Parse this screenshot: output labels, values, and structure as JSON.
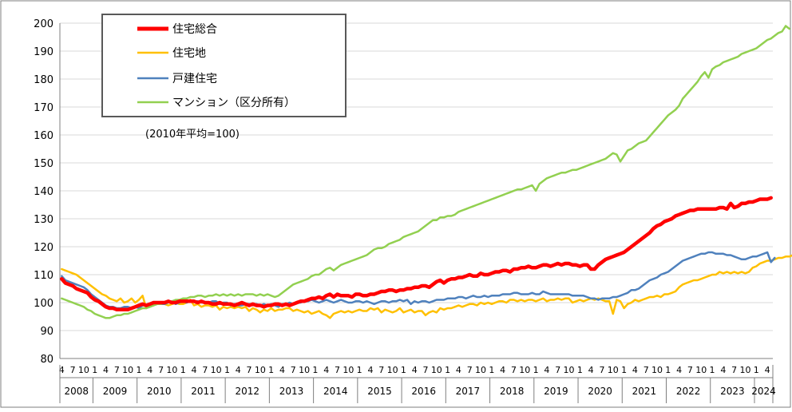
{
  "chart_data": {
    "type": "line",
    "note": "(2010年平均=100)",
    "ylim": [
      80,
      200
    ],
    "yticks": [
      80,
      90,
      100,
      110,
      120,
      130,
      140,
      150,
      160,
      170,
      180,
      190,
      200
    ],
    "x_start": "2008-04",
    "x_end": "2024-03",
    "month_ticks": [
      "4",
      "7",
      "10",
      "1"
    ],
    "years": [
      "2008",
      "2009",
      "2010",
      "2011",
      "2012",
      "2013",
      "2014",
      "2015",
      "2016",
      "2017",
      "2018",
      "2019",
      "2020",
      "2021",
      "2022",
      "2023",
      "2024"
    ],
    "legend": {
      "position": "top-left"
    },
    "series": [
      {
        "name": "住宅総合",
        "color": "#ff0000",
        "values": [
          108.5,
          107.0,
          106.5,
          106.0,
          105.0,
          104.5,
          104.0,
          103.5,
          102.0,
          101.0,
          100.5,
          99.5,
          98.5,
          98.0,
          98.0,
          97.5,
          97.5,
          97.5,
          97.5,
          98.0,
          98.5,
          99.0,
          99.5,
          99.0,
          99.5,
          100.0,
          100.0,
          100.0,
          100.0,
          100.5,
          100.0,
          100.0,
          100.5,
          100.5,
          100.5,
          100.5,
          100.5,
          100.0,
          100.5,
          100.0,
          100.0,
          99.5,
          99.5,
          100.0,
          99.5,
          99.5,
          99.5,
          99.0,
          99.5,
          100.0,
          99.5,
          99.0,
          99.5,
          99.0,
          99.0,
          98.5,
          99.0,
          99.0,
          99.5,
          99.5,
          99.0,
          99.5,
          99.0,
          99.5,
          100.0,
          100.5,
          100.5,
          101.0,
          101.5,
          101.5,
          102.0,
          101.5,
          102.5,
          103.0,
          102.0,
          103.0,
          102.5,
          102.5,
          102.5,
          102.0,
          103.0,
          103.0,
          102.5,
          102.5,
          103.0,
          103.0,
          103.5,
          104.0,
          104.0,
          104.5,
          104.5,
          104.0,
          104.5,
          104.5,
          105.0,
          105.0,
          105.5,
          105.5,
          106.0,
          106.0,
          105.5,
          106.5,
          107.5,
          108.0,
          107.0,
          108.0,
          108.5,
          108.5,
          109.0,
          109.0,
          109.5,
          110.0,
          109.5,
          109.5,
          110.5,
          110.0,
          110.0,
          110.5,
          111.0,
          111.0,
          111.5,
          111.5,
          111.0,
          112.0,
          112.0,
          112.5,
          112.5,
          113.0,
          112.5,
          112.5,
          113.0,
          113.5,
          113.5,
          113.0,
          113.5,
          114.0,
          113.5,
          114.0,
          114.0,
          113.5,
          113.5,
          113.0,
          113.5,
          113.5,
          112.0,
          112.0,
          113.5,
          114.5,
          115.5,
          116.0,
          116.5,
          117.0,
          117.5,
          118.0,
          119.0,
          120.0,
          121.0,
          122.0,
          123.0,
          124.0,
          125.0,
          126.5,
          127.5,
          128.0,
          129.0,
          129.5,
          130.0,
          131.0,
          131.5,
          132.0,
          132.5,
          133.0,
          133.0,
          133.5,
          133.5,
          133.5,
          133.5,
          133.5,
          133.5,
          134.0,
          134.0,
          133.5,
          135.5,
          134.0,
          134.5,
          135.5,
          135.5,
          136.0,
          136.0,
          136.5,
          137.0,
          137.0,
          137.0,
          137.5
        ]
      },
      {
        "name": "住宅地",
        "color": "#ffc000",
        "values": [
          112.0,
          111.5,
          111.0,
          110.5,
          110.0,
          109.0,
          108.0,
          107.0,
          106.0,
          105.0,
          104.0,
          103.0,
          102.5,
          101.5,
          101.0,
          100.5,
          101.5,
          100.0,
          100.5,
          101.5,
          100.0,
          101.0,
          102.5,
          98.0,
          99.0,
          99.0,
          100.0,
          99.5,
          99.5,
          99.0,
          99.5,
          100.0,
          99.5,
          99.5,
          100.0,
          101.0,
          99.0,
          99.5,
          98.5,
          99.0,
          99.0,
          98.5,
          99.0,
          97.5,
          98.5,
          98.0,
          98.5,
          98.0,
          98.5,
          98.0,
          98.5,
          97.0,
          98.0,
          97.5,
          96.5,
          97.5,
          97.0,
          98.0,
          97.0,
          97.5,
          97.5,
          98.0,
          98.0,
          97.0,
          97.5,
          97.0,
          96.5,
          97.0,
          96.0,
          96.5,
          97.0,
          96.0,
          95.5,
          94.5,
          96.0,
          96.5,
          97.0,
          96.5,
          97.0,
          96.5,
          97.0,
          97.5,
          97.0,
          97.0,
          98.0,
          97.5,
          98.0,
          96.5,
          97.5,
          97.0,
          96.5,
          97.0,
          98.0,
          96.5,
          97.0,
          97.5,
          96.5,
          97.0,
          97.0,
          95.5,
          96.5,
          97.0,
          96.5,
          98.0,
          97.5,
          98.0,
          98.0,
          98.5,
          99.0,
          98.5,
          99.0,
          99.5,
          99.5,
          99.0,
          100.0,
          99.5,
          100.0,
          99.5,
          100.0,
          100.5,
          100.5,
          100.0,
          101.0,
          101.0,
          100.5,
          101.0,
          100.5,
          101.0,
          101.0,
          100.5,
          101.0,
          101.5,
          100.5,
          101.0,
          101.0,
          101.5,
          101.0,
          101.5,
          101.5,
          100.0,
          100.5,
          101.0,
          100.5,
          101.0,
          101.5,
          101.0,
          101.5,
          101.0,
          100.5,
          100.5,
          96.0,
          101.0,
          100.5,
          98.0,
          99.5,
          100.0,
          101.0,
          100.5,
          101.0,
          101.5,
          102.0,
          102.0,
          102.5,
          102.0,
          103.0,
          103.0,
          103.5,
          104.0,
          105.5,
          106.5,
          107.0,
          107.5,
          108.0,
          108.0,
          108.5,
          109.0,
          109.5,
          110.0,
          110.0,
          111.0,
          110.5,
          111.0,
          110.5,
          111.0,
          110.5,
          111.0,
          110.5,
          111.0,
          112.5,
          113.0,
          114.0,
          114.5,
          115.0,
          115.0,
          115.5,
          116.0,
          116.0,
          116.5,
          116.5,
          117.0
        ]
      },
      {
        "name": "戸建住宅",
        "color": "#4f81bd",
        "values": [
          109.5,
          108.0,
          107.5,
          107.0,
          106.5,
          106.0,
          105.5,
          104.5,
          103.0,
          102.0,
          101.0,
          100.0,
          99.0,
          98.5,
          98.5,
          98.0,
          98.0,
          98.5,
          98.5,
          98.0,
          98.5,
          98.0,
          99.0,
          99.0,
          99.0,
          99.5,
          100.0,
          99.5,
          99.5,
          100.0,
          100.5,
          99.5,
          100.0,
          100.5,
          100.0,
          100.5,
          100.5,
          100.5,
          100.0,
          100.0,
          100.0,
          100.5,
          100.5,
          99.5,
          100.0,
          100.0,
          99.0,
          99.5,
          99.0,
          99.0,
          99.5,
          99.5,
          99.0,
          99.5,
          99.0,
          99.5,
          99.0,
          99.5,
          99.0,
          98.5,
          99.5,
          99.5,
          100.0,
          99.5,
          100.0,
          100.0,
          100.5,
          100.5,
          101.0,
          100.5,
          100.0,
          100.5,
          101.0,
          100.5,
          100.0,
          100.5,
          101.0,
          100.5,
          100.0,
          100.0,
          100.5,
          100.5,
          100.0,
          100.5,
          100.0,
          99.5,
          100.0,
          100.5,
          100.5,
          100.0,
          100.5,
          100.5,
          101.0,
          100.5,
          101.0,
          99.5,
          100.5,
          100.0,
          100.5,
          100.5,
          100.0,
          100.5,
          101.0,
          101.0,
          101.0,
          101.5,
          101.5,
          101.5,
          102.0,
          102.0,
          101.5,
          102.0,
          102.5,
          102.0,
          102.0,
          102.5,
          102.0,
          102.5,
          102.5,
          102.5,
          103.0,
          103.0,
          103.0,
          103.5,
          103.5,
          103.0,
          103.0,
          103.0,
          103.5,
          103.0,
          103.0,
          104.0,
          103.5,
          103.0,
          103.0,
          103.0,
          103.0,
          103.0,
          103.0,
          102.5,
          102.5,
          102.5,
          102.5,
          102.0,
          101.5,
          101.5,
          101.0,
          101.5,
          101.5,
          101.5,
          102.0,
          102.0,
          102.5,
          103.0,
          103.5,
          104.5,
          104.5,
          105.0,
          106.0,
          107.0,
          108.0,
          108.5,
          109.0,
          110.0,
          110.5,
          111.0,
          112.0,
          113.0,
          114.0,
          115.0,
          115.5,
          116.0,
          116.5,
          117.0,
          117.5,
          117.5,
          118.0,
          118.0,
          117.5,
          117.5,
          117.5,
          117.0,
          117.0,
          116.5,
          116.0,
          115.5,
          115.5,
          116.0,
          116.5,
          116.5,
          117.0,
          117.5,
          118.0,
          114.5,
          116.0
        ]
      },
      {
        "name": "マンション（区分所有）",
        "color": "#92d050",
        "values": [
          101.5,
          101.0,
          100.5,
          100.0,
          99.5,
          99.0,
          98.5,
          97.5,
          97.0,
          96.0,
          95.5,
          95.0,
          94.5,
          94.5,
          95.0,
          95.5,
          95.5,
          96.0,
          96.0,
          96.5,
          97.0,
          97.5,
          98.0,
          98.0,
          98.5,
          99.0,
          99.5,
          99.5,
          100.0,
          100.0,
          100.5,
          101.0,
          101.0,
          101.5,
          101.5,
          102.0,
          102.0,
          102.5,
          102.5,
          102.0,
          102.5,
          102.5,
          103.0,
          102.5,
          103.0,
          102.5,
          103.0,
          102.5,
          103.0,
          102.5,
          103.0,
          103.0,
          103.0,
          102.5,
          103.0,
          102.5,
          103.0,
          102.5,
          102.0,
          102.5,
          103.5,
          104.5,
          105.5,
          106.5,
          107.0,
          107.5,
          108.0,
          108.5,
          109.5,
          110.0,
          110.0,
          111.0,
          112.0,
          112.5,
          111.5,
          112.5,
          113.5,
          114.0,
          114.5,
          115.0,
          115.5,
          116.0,
          116.5,
          117.0,
          118.0,
          119.0,
          119.5,
          119.5,
          120.0,
          121.0,
          121.5,
          122.0,
          122.5,
          123.5,
          124.0,
          124.5,
          125.0,
          125.5,
          126.5,
          127.5,
          128.5,
          129.5,
          129.5,
          130.5,
          130.5,
          131.0,
          131.0,
          131.5,
          132.5,
          133.0,
          133.5,
          134.0,
          134.5,
          135.0,
          135.5,
          136.0,
          136.5,
          137.0,
          137.5,
          138.0,
          138.5,
          139.0,
          139.5,
          140.0,
          140.5,
          140.5,
          141.0,
          141.5,
          142.0,
          140.0,
          142.5,
          143.5,
          144.5,
          145.0,
          145.5,
          146.0,
          146.5,
          146.5,
          147.0,
          147.5,
          147.5,
          148.0,
          148.5,
          149.0,
          149.5,
          150.0,
          150.5,
          151.0,
          151.5,
          152.5,
          153.5,
          153.0,
          150.5,
          152.5,
          154.5,
          155.0,
          156.0,
          157.0,
          157.5,
          158.0,
          159.5,
          161.0,
          162.5,
          164.0,
          165.5,
          167.0,
          168.0,
          169.0,
          170.5,
          173.0,
          174.5,
          176.0,
          177.5,
          179.0,
          181.0,
          182.5,
          180.5,
          183.5,
          184.5,
          185.0,
          186.0,
          186.5,
          187.0,
          187.5,
          188.0,
          189.0,
          189.5,
          190.0,
          190.5,
          191.0,
          192.0,
          193.0,
          194.0,
          194.5,
          195.5,
          196.5,
          197.0,
          199.0,
          198.0
        ]
      }
    ]
  }
}
